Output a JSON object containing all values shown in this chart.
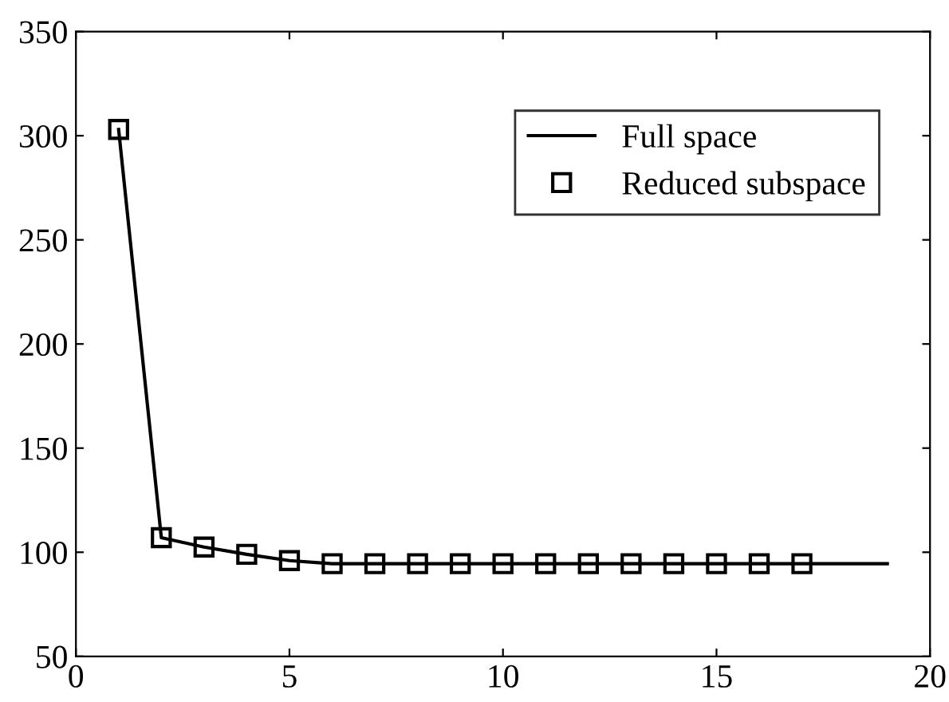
{
  "chart_data": {
    "type": "line",
    "xlim": [
      0,
      20
    ],
    "ylim": [
      50,
      350
    ],
    "xticks": [
      0,
      5,
      10,
      15,
      20
    ],
    "yticks": [
      50,
      100,
      150,
      200,
      250,
      300,
      350
    ],
    "grid": false,
    "legend": "top right",
    "series": [
      {
        "name": "Full space",
        "color": "#000000",
        "marker": "none",
        "line_style": "solid",
        "x": [
          1,
          2,
          3,
          4,
          5,
          6,
          7,
          8,
          9,
          10,
          11,
          12,
          13,
          14,
          15,
          16,
          17,
          18,
          19
        ],
        "values": [
          303,
          107,
          102.5,
          99,
          96,
          94.5,
          94.5,
          94.5,
          94.5,
          94.5,
          94.5,
          94.5,
          94.5,
          94.5,
          94.5,
          94.5,
          94.5,
          94.5,
          94.5
        ]
      },
      {
        "name": "Reduced subspace",
        "type": "scatter",
        "color": "#000000",
        "marker": "square",
        "x": [
          1,
          2,
          3,
          4,
          5,
          6,
          7,
          8,
          9,
          10,
          11,
          12,
          13,
          14,
          15,
          16,
          17
        ],
        "values": [
          303,
          107,
          102.5,
          99,
          96,
          94.5,
          94.5,
          94.5,
          94.5,
          94.5,
          94.5,
          94.5,
          94.5,
          94.5,
          94.5,
          94.5,
          94.5
        ]
      }
    ]
  }
}
